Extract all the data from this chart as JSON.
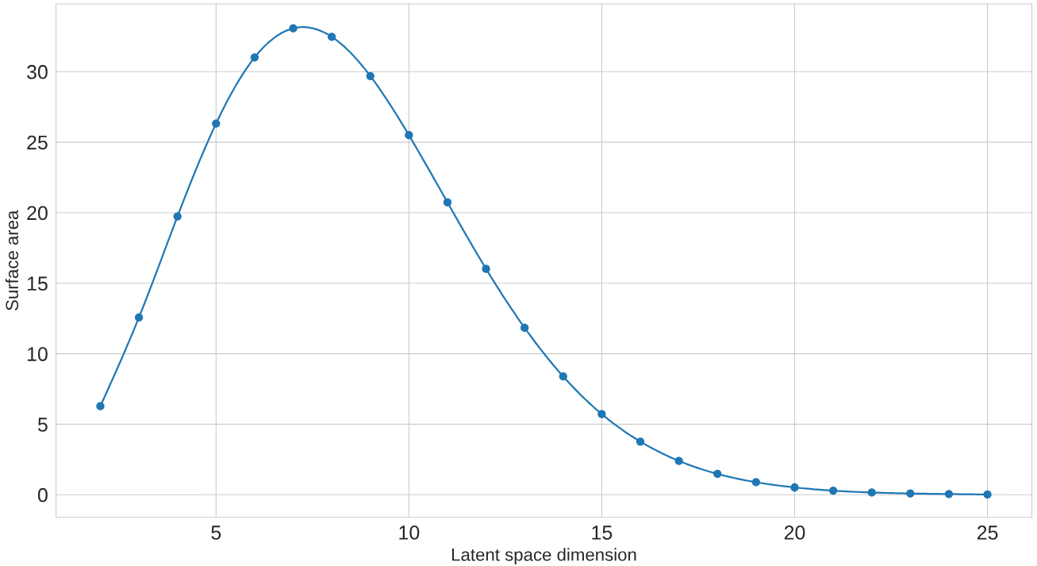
{
  "chart_data": {
    "type": "line",
    "xlabel": "Latent space dimension",
    "ylabel": "Surface area",
    "x": [
      2,
      3,
      4,
      5,
      6,
      7,
      8,
      9,
      10,
      11,
      12,
      13,
      14,
      15,
      16,
      17,
      18,
      19,
      20,
      21,
      22,
      23,
      24,
      25
    ],
    "series": [
      {
        "color": "#1f77b4",
        "values": [
          6.28,
          12.57,
          19.74,
          26.32,
          31.01,
          33.07,
          32.47,
          29.69,
          25.5,
          20.73,
          16.02,
          11.84,
          8.39,
          5.72,
          3.77,
          2.4,
          1.48,
          0.89,
          0.52,
          0.29,
          0.16,
          0.09,
          0.05,
          0.02
        ]
      }
    ],
    "xlim": [
      0.85,
      26.15
    ],
    "ylim": [
      -1.6,
      34.8
    ],
    "xticks": [
      5,
      10,
      15,
      20,
      25
    ],
    "yticks": [
      0,
      5,
      10,
      15,
      20,
      25,
      30
    ],
    "grid": true,
    "marker": "circle",
    "line_style": "solid"
  }
}
